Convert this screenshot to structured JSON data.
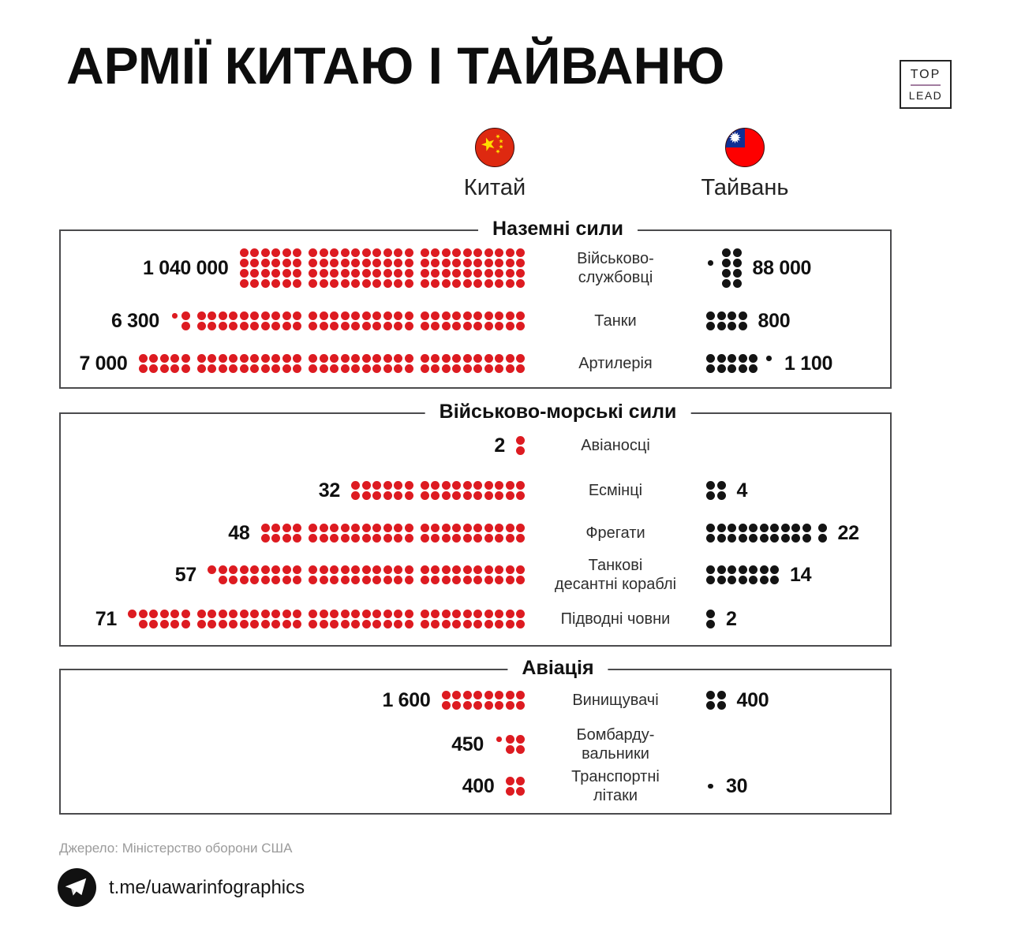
{
  "title": "АРМІЇ КИТАЮ І ТАЙВАНЮ",
  "logo": {
    "top": "TOP",
    "lead": "LEAD"
  },
  "legend": {
    "china_label": "Китай",
    "taiwan_label": "Тайвань",
    "china_flag_icon": "china-flag-icon",
    "taiwan_flag_icon": "taiwan-flag-icon"
  },
  "colors": {
    "china_dot": "#dd1b21",
    "taiwan_dot": "#141414",
    "box_border": "#4b4b4d",
    "logo_divider": "#a27da0",
    "source_text": "#9b9b9b",
    "flag_red": "#de2910",
    "flag_blue": "#0f2f94",
    "star_yellow": "#ffde00",
    "taiwan_flag_red": "#fe0000"
  },
  "sections": [
    {
      "header": "Наземні сили",
      "rows": [
        {
          "label_lines": [
            "Військово-",
            "службовці"
          ],
          "china": {
            "value": "1 040 000",
            "rows": 4,
            "groups": [
              {
                "cols": 6
              },
              {
                "cols": 10
              },
              {
                "cols": 10
              }
            ]
          },
          "taiwan": {
            "value": "88 000",
            "rows": 4,
            "groups": [
              {
                "pattern": [
                  ".S.."
                ]
              },
              {
                "cols": 2
              }
            ]
          }
        },
        {
          "label_lines": [
            "Танки"
          ],
          "china": {
            "value": "6 300",
            "rows": 2,
            "groups": [
              {
                "pattern": [
                  "S.",
                  "FF"
                ]
              },
              {
                "cols": 10
              },
              {
                "cols": 10
              },
              {
                "cols": 10
              }
            ]
          },
          "taiwan": {
            "value": "800",
            "rows": 2,
            "groups": [
              {
                "cols": 4
              }
            ]
          }
        },
        {
          "label_lines": [
            "Артилерія"
          ],
          "china": {
            "value": "7 000",
            "rows": 2,
            "groups": [
              {
                "cols": 5
              },
              {
                "cols": 10
              },
              {
                "cols": 10
              },
              {
                "cols": 10
              }
            ]
          },
          "taiwan": {
            "value": "1 100",
            "rows": 2,
            "groups": [
              {
                "cols": 5
              },
              {
                "pattern": [
                  "S."
                ]
              }
            ]
          }
        }
      ]
    },
    {
      "header": "Військово-морські сили",
      "rows": [
        {
          "label_lines": [
            "Авіаносці"
          ],
          "china": {
            "value": "2",
            "rows": 2,
            "groups": [
              {
                "cols": 1
              }
            ]
          },
          "taiwan": null
        },
        {
          "label_lines": [
            "Есмінці"
          ],
          "china": {
            "value": "32",
            "rows": 2,
            "groups": [
              {
                "cols": 6
              },
              {
                "cols": 10
              }
            ]
          },
          "taiwan": {
            "value": "4",
            "rows": 2,
            "groups": [
              {
                "cols": 2
              }
            ]
          }
        },
        {
          "label_lines": [
            "Фрегати"
          ],
          "china": {
            "value": "48",
            "rows": 2,
            "groups": [
              {
                "cols": 4
              },
              {
                "cols": 10
              },
              {
                "cols": 10
              }
            ]
          },
          "taiwan": {
            "value": "22",
            "rows": 2,
            "groups": [
              {
                "cols": 10
              },
              {
                "cols": 1
              }
            ]
          }
        },
        {
          "label_lines": [
            "Танкові",
            "десантні кораблі"
          ],
          "china": {
            "value": "57",
            "rows": 2,
            "groups": [
              {
                "lead": [
                  "F."
                ],
                "cols": 8
              },
              {
                "cols": 10
              },
              {
                "cols": 10
              }
            ]
          },
          "taiwan": {
            "value": "14",
            "rows": 2,
            "groups": [
              {
                "cols": 7
              }
            ]
          }
        },
        {
          "label_lines": [
            "Підводні човни"
          ],
          "china": {
            "value": "71",
            "rows": 2,
            "groups": [
              {
                "lead": [
                  "F."
                ],
                "cols": 5
              },
              {
                "cols": 10
              },
              {
                "cols": 10
              },
              {
                "cols": 10
              }
            ]
          },
          "taiwan": {
            "value": "2",
            "rows": 2,
            "groups": [
              {
                "cols": 1
              }
            ]
          }
        }
      ]
    },
    {
      "header": "Авіація",
      "rows": [
        {
          "label_lines": [
            "Винищувачі"
          ],
          "china": {
            "value": "1 600",
            "rows": 2,
            "groups": [
              {
                "cols": 8
              }
            ]
          },
          "taiwan": {
            "value": "400",
            "rows": 2,
            "groups": [
              {
                "cols": 2
              }
            ]
          }
        },
        {
          "label_lines": [
            "Бомбарду-",
            "вальники"
          ],
          "china": {
            "value": "450",
            "rows": 2,
            "groups": [
              {
                "lead": [
                  "S."
                ],
                "cols": 2
              }
            ]
          },
          "taiwan": null
        },
        {
          "label_lines": [
            "Транспортні",
            "літаки"
          ],
          "china": {
            "value": "400",
            "rows": 2,
            "groups": [
              {
                "cols": 2
              }
            ]
          },
          "taiwan": {
            "value": "30",
            "rows": 1,
            "groups": [
              {
                "pattern": [
                  "S"
                ]
              }
            ]
          }
        }
      ]
    }
  ],
  "footer": {
    "source": "Джерело: Міністерство оборони США",
    "telegram": "t.me/uawarinfographics",
    "telegram_icon": "telegram-icon"
  },
  "chart_data": {
    "type": "pictogram",
    "title": "АРМІЇ КИТАЮ І ТАЙВАНЮ",
    "legend": [
      "Китай",
      "Тайвань"
    ],
    "legend_position": "top",
    "sections": [
      {
        "section": "Наземні сили",
        "categories": [
          "Військовослужбовці",
          "Танки",
          "Артилерія"
        ],
        "series": [
          {
            "name": "Китай",
            "values": [
              1040000,
              6300,
              7000
            ]
          },
          {
            "name": "Тайвань",
            "values": [
              88000,
              800,
              1100
            ]
          }
        ]
      },
      {
        "section": "Військово-морські сили",
        "categories": [
          "Авіаносці",
          "Есмінці",
          "Фрегати",
          "Танкові десантні кораблі",
          "Підводні човни"
        ],
        "series": [
          {
            "name": "Китай",
            "values": [
              2,
              32,
              48,
              57,
              71
            ]
          },
          {
            "name": "Тайвань",
            "values": [
              null,
              4,
              22,
              14,
              2
            ]
          }
        ]
      },
      {
        "section": "Авіація",
        "categories": [
          "Винищувачі",
          "Бомбардувальники",
          "Транспортні літаки"
        ],
        "series": [
          {
            "name": "Китай",
            "values": [
              1600,
              450,
              400
            ]
          },
          {
            "name": "Тайвань",
            "values": [
              400,
              null,
              30
            ]
          }
        ]
      }
    ],
    "source": "Джерело: Міністерство оборони США"
  }
}
